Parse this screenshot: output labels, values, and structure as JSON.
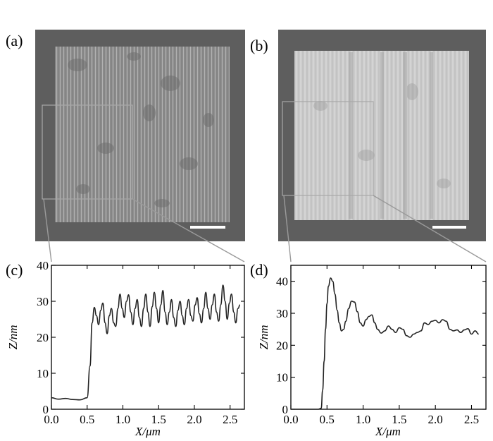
{
  "panels": {
    "a": {
      "label": "(a)"
    },
    "b": {
      "label": "(b)"
    },
    "c": {
      "label": "(c)"
    },
    "d": {
      "label": "(d)"
    }
  },
  "colors": {
    "image_background": "#5e5e5e",
    "sample_a": "#8e8e8e",
    "sample_b": "#c9c9c9",
    "scale_bar": "#ffffff",
    "curve": "#222222"
  },
  "chart_data": [
    {
      "type": "line",
      "panel": "(c)",
      "xlabel": "X/μm",
      "ylabel": "Z/nm",
      "xlim": [
        0,
        2.7
      ],
      "ylim": [
        0,
        40
      ],
      "xticks": [
        "0.0",
        "0.5",
        "1.0",
        "1.5",
        "2.0",
        "2.5"
      ],
      "yticks": [
        "0",
        "10",
        "20",
        "30",
        "40"
      ],
      "grid": false,
      "x": [
        0.0,
        0.1,
        0.2,
        0.3,
        0.4,
        0.5,
        0.54,
        0.57,
        0.6,
        0.63,
        0.66,
        0.69,
        0.72,
        0.75,
        0.78,
        0.81,
        0.84,
        0.87,
        0.9,
        0.93,
        0.96,
        0.99,
        1.02,
        1.05,
        1.08,
        1.11,
        1.14,
        1.17,
        1.2,
        1.23,
        1.26,
        1.29,
        1.32,
        1.35,
        1.38,
        1.41,
        1.44,
        1.47,
        1.5,
        1.53,
        1.56,
        1.59,
        1.62,
        1.65,
        1.68,
        1.71,
        1.74,
        1.77,
        1.8,
        1.83,
        1.86,
        1.89,
        1.92,
        1.95,
        1.98,
        2.01,
        2.04,
        2.07,
        2.1,
        2.13,
        2.16,
        2.19,
        2.22,
        2.25,
        2.28,
        2.31,
        2.34,
        2.37,
        2.4,
        2.43,
        2.46,
        2.49,
        2.52,
        2.55,
        2.58,
        2.61,
        2.64
      ],
      "y": [
        3.2,
        2.8,
        3.0,
        2.7,
        2.6,
        3.2,
        12.0,
        24.0,
        28.3,
        26.0,
        23.5,
        27.5,
        29.5,
        24.0,
        21.0,
        26.0,
        28.0,
        24.0,
        23.0,
        28.0,
        32.0,
        28.0,
        25.5,
        30.0,
        31.8,
        27.0,
        23.5,
        28.0,
        30.5,
        25.5,
        23.0,
        28.0,
        32.0,
        27.0,
        23.0,
        28.5,
        32.5,
        28.0,
        24.0,
        29.0,
        33.0,
        27.0,
        23.5,
        27.0,
        30.5,
        25.5,
        23.0,
        27.5,
        30.0,
        26.0,
        23.5,
        28.0,
        30.5,
        26.0,
        24.5,
        29.0,
        31.0,
        26.5,
        24.0,
        28.0,
        32.5,
        28.0,
        25.0,
        29.0,
        32.0,
        27.0,
        24.5,
        29.0,
        34.5,
        30.0,
        25.0,
        29.5,
        32.0,
        27.0,
        24.0,
        28.0,
        29.0
      ]
    },
    {
      "type": "line",
      "panel": "(d)",
      "xlabel": "X/μm",
      "ylabel": "Z/nm",
      "xlim": [
        0,
        2.7
      ],
      "ylim": [
        0,
        45
      ],
      "xticks": [
        "0.0",
        "0.5",
        "1.0",
        "1.5",
        "2.0",
        "2.5"
      ],
      "yticks": [
        "0",
        "10",
        "20",
        "30",
        "40"
      ],
      "grid": false,
      "x": [
        0.0,
        0.1,
        0.2,
        0.3,
        0.38,
        0.42,
        0.44,
        0.46,
        0.48,
        0.5,
        0.52,
        0.55,
        0.58,
        0.61,
        0.64,
        0.67,
        0.7,
        0.73,
        0.76,
        0.8,
        0.84,
        0.88,
        0.92,
        0.96,
        1.0,
        1.04,
        1.08,
        1.12,
        1.16,
        1.2,
        1.25,
        1.3,
        1.35,
        1.4,
        1.45,
        1.5,
        1.55,
        1.6,
        1.65,
        1.7,
        1.75,
        1.8,
        1.85,
        1.9,
        1.95,
        2.0,
        2.05,
        2.1,
        2.15,
        2.2,
        2.25,
        2.3,
        2.35,
        2.4,
        2.45,
        2.5,
        2.55,
        2.6
      ],
      "y": [
        0,
        0,
        0,
        0,
        0,
        0.3,
        6.0,
        15.0,
        25.0,
        33.0,
        38.5,
        41.0,
        40.0,
        36.0,
        31.0,
        27.0,
        24.5,
        25.0,
        27.5,
        31.5,
        33.8,
        33.5,
        30.5,
        27.0,
        26.0,
        28.0,
        29.0,
        29.5,
        27.0,
        25.0,
        23.8,
        24.5,
        26.0,
        25.0,
        24.0,
        25.5,
        25.0,
        23.0,
        22.5,
        23.5,
        24.0,
        24.5,
        27.0,
        26.5,
        27.5,
        27.8,
        27.0,
        28.0,
        27.5,
        25.0,
        24.5,
        24.8,
        24.0,
        24.8,
        25.2,
        23.5,
        24.5,
        23.5
      ]
    }
  ]
}
